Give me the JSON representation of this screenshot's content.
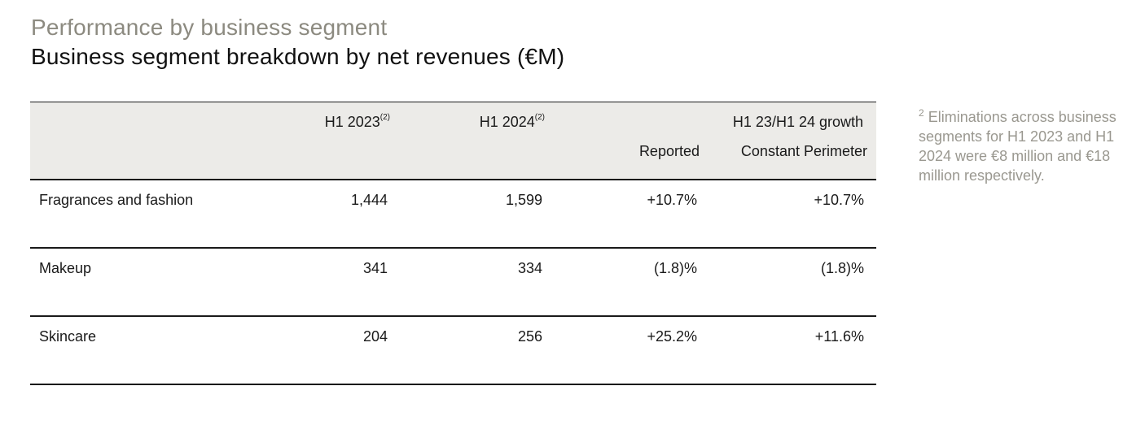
{
  "header": {
    "supertitle": "Performance by business segment",
    "title": "Business segment breakdown by net revenues (€M)"
  },
  "table": {
    "columns": {
      "h1_2023": "H1 2023",
      "h1_2023_note": "(2)",
      "h1_2024": "H1 2024",
      "h1_2024_note": "(2)",
      "growth_group": "H1 23/H1 24 growth",
      "reported": "Reported",
      "constant_perimeter": "Constant Perimeter"
    },
    "rows": [
      {
        "segment": "Fragrances and fashion",
        "h1_2023": "1,444",
        "h1_2024": "1,599",
        "reported": "+10.7%",
        "constant_perimeter": "+10.7%"
      },
      {
        "segment": "Makeup",
        "h1_2023": "341",
        "h1_2024": "334",
        "reported": "(1.8)%",
        "constant_perimeter": "(1.8)%"
      },
      {
        "segment": "Skincare",
        "h1_2023": "204",
        "h1_2024": "256",
        "reported": "+25.2%",
        "constant_perimeter": "+11.6%"
      }
    ]
  },
  "footnote": {
    "marker": "2",
    "text": "Eliminations across business segments for H1 2023 and H1 2024 were €8 million and €18 million respectively."
  }
}
